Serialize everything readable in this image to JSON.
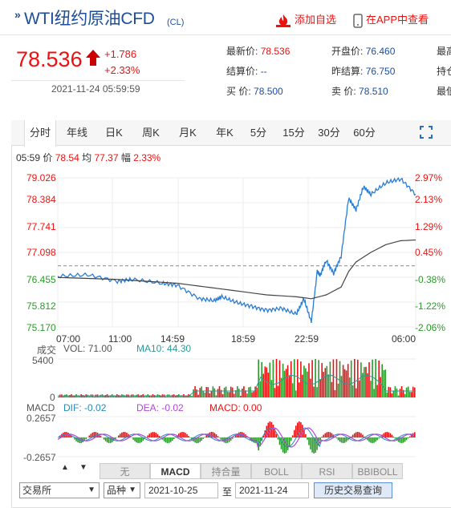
{
  "header": {
    "title": "WTI纽约原油CFD",
    "code": "(CL)",
    "add_watchlist": "添加自选",
    "view_in_app": "在APP中查看"
  },
  "quote": {
    "price": "78.536",
    "change": "+1.786",
    "change_pct": "+2.33%",
    "timestamp": "2021-11-24 05:59:59"
  },
  "quote_table": {
    "col1": [
      {
        "label": "最新价:",
        "value": "78.536"
      },
      {
        "label": "结算价:",
        "value": "--"
      },
      {
        "label": "买  价:",
        "value": "78.500"
      }
    ],
    "col2": [
      {
        "label": "开盘价:",
        "value": "76.460"
      },
      {
        "label": "昨结算:",
        "value": "76.750"
      },
      {
        "label": "卖  价:",
        "value": "78.510"
      }
    ],
    "col3": [
      "最高",
      "持仓",
      "最低"
    ]
  },
  "tabs": [
    "分时",
    "年线",
    "日K",
    "周K",
    "月K",
    "年K",
    "5分",
    "15分",
    "30分",
    "60分"
  ],
  "info_bar": {
    "time": "05:59",
    "price_label": "价",
    "price": "78.54",
    "avg_label": "均",
    "avg": "77.37",
    "amp_label": "幅",
    "amp": "2.33%"
  },
  "chart_data": [
    {
      "type": "line",
      "title": "",
      "y_ticks_left": [
        "79.026",
        "78.384",
        "77.741",
        "77.098",
        "76.455",
        "75.812",
        "75.170"
      ],
      "y_ticks_right": [
        "2.97%",
        "2.13%",
        "1.29%",
        "0.45%",
        "-0.38%",
        "-1.22%",
        "-2.06%"
      ],
      "x_ticks": [
        "07:00",
        "11:00",
        "14:59",
        "18:59",
        "22:59",
        "06:00"
      ],
      "ylim": [
        75.17,
        79.026
      ],
      "reference_line": 76.75,
      "series": [
        {
          "name": "价",
          "color": "#2b7cd3",
          "x": [
            0,
            2,
            4,
            5,
            7,
            8,
            9.5,
            10.5,
            11,
            12,
            13,
            14,
            15,
            16,
            16.5,
            17,
            17.4,
            17.6,
            18,
            18.5,
            19,
            19.5,
            20,
            20.5,
            21,
            22,
            23,
            24
          ],
          "y": [
            76.48,
            76.52,
            76.35,
            76.4,
            76.3,
            76.25,
            75.9,
            75.85,
            75.95,
            75.8,
            75.7,
            75.6,
            75.65,
            75.5,
            75.9,
            75.3,
            76.6,
            76.5,
            76.9,
            76.55,
            77.0,
            78.5,
            78.2,
            78.8,
            78.6,
            78.9,
            79.0,
            78.6
          ]
        },
        {
          "name": "均",
          "color": "#444444",
          "x": [
            0,
            4,
            8,
            11,
            14,
            16,
            17,
            18,
            19,
            19.5,
            20,
            21,
            22,
            23,
            24
          ],
          "y": [
            76.45,
            76.4,
            76.3,
            76.15,
            76.0,
            75.95,
            75.9,
            76.0,
            76.2,
            76.6,
            76.85,
            77.1,
            77.3,
            77.4,
            77.42
          ]
        }
      ]
    },
    {
      "type": "bar",
      "title": "成交",
      "legend": [
        {
          "name": "VOL:",
          "value": "71.00"
        },
        {
          "name": "MA10:",
          "value": "44.30"
        }
      ],
      "y_ticks": [
        "5400",
        "0"
      ],
      "ylim": [
        0,
        5400
      ]
    },
    {
      "type": "bar",
      "title": "MACD",
      "legend": [
        {
          "name": "DIF:",
          "value": "-0.02"
        },
        {
          "name": "DEA:",
          "value": "-0.02"
        },
        {
          "name": "MACD:",
          "value": "0.00"
        }
      ],
      "y_ticks": [
        "0.2657",
        "-0.2657"
      ],
      "ylim": [
        -0.2657,
        0.2657
      ]
    }
  ],
  "bottom_tabs": [
    "无",
    "MACD",
    "持合量",
    "BOLL",
    "RSI",
    "BBIBOLL"
  ],
  "filters": {
    "exchange": "交易所",
    "variety": "品种",
    "date_from": "2021-10-25",
    "to": "至",
    "date_to": "2021-11-24",
    "query": "历史交易查询"
  },
  "colors": {
    "up": "#e11",
    "down": "#2a9a2a",
    "brand": "#1d4e9a",
    "price_line": "#2b7cd3"
  }
}
